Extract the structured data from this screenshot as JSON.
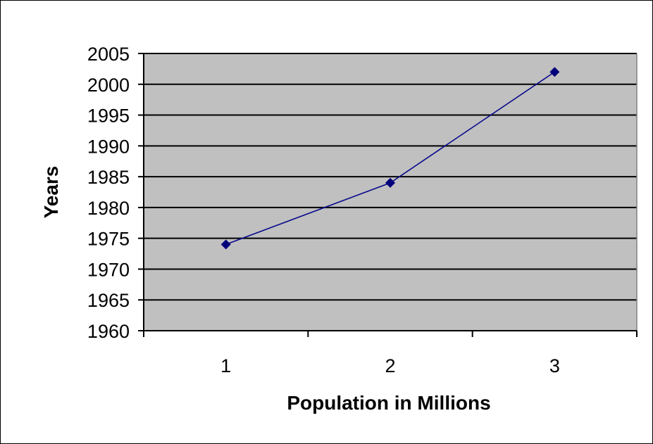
{
  "chart_data": {
    "type": "line",
    "title": "",
    "xlabel": "Population in Millions",
    "ylabel": "Years",
    "x": [
      1,
      2,
      3
    ],
    "x_ticks": [
      "1",
      "2",
      "3"
    ],
    "series": [
      {
        "values": [
          1974,
          1984,
          2002
        ]
      }
    ],
    "y_ticks": [
      "1960",
      "1965",
      "1970",
      "1975",
      "1980",
      "1985",
      "1990",
      "1995",
      "2000",
      "2005"
    ],
    "ylim": [
      1960,
      2005
    ],
    "grid": "horizontal",
    "legend": "none",
    "colors": {
      "plot_background": "#c0c0c0",
      "gridline": "#000000",
      "line": "#0a0a8c",
      "marker": "#00007a"
    },
    "marker_shape": "diamond-icon"
  }
}
